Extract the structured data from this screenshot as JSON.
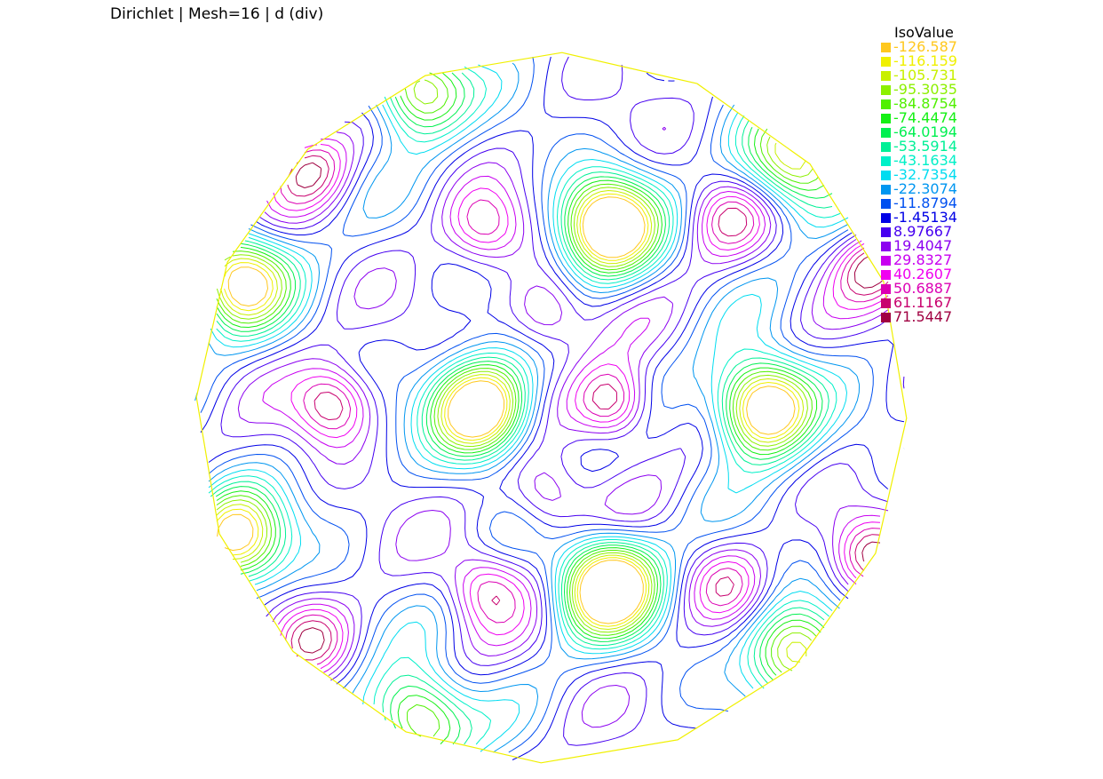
{
  "title": "Dirichlet | Mesh=16 | d (div)",
  "legend": {
    "title": "IsoValue",
    "entries": [
      {
        "label": "-126.587",
        "color": "#ffc81e"
      },
      {
        "label": "-116.159",
        "color": "#f0f000"
      },
      {
        "label": "-105.731",
        "color": "#c8f000"
      },
      {
        "label": "-95.3035",
        "color": "#8cf000"
      },
      {
        "label": "-84.8754",
        "color": "#50f000"
      },
      {
        "label": "-74.4474",
        "color": "#14f014"
      },
      {
        "label": "-64.0194",
        "color": "#00f050"
      },
      {
        "label": "-53.5914",
        "color": "#00f096"
      },
      {
        "label": "-43.1634",
        "color": "#00f0c8"
      },
      {
        "label": "-32.7354",
        "color": "#00dcf0"
      },
      {
        "label": "-22.3074",
        "color": "#0096f0"
      },
      {
        "label": "-11.8794",
        "color": "#0050f0"
      },
      {
        "label": "-1.45134",
        "color": "#0000e6"
      },
      {
        "label": "8.97667",
        "color": "#4600f0"
      },
      {
        "label": "19.4047",
        "color": "#8c00f0"
      },
      {
        "label": "29.8327",
        "color": "#c800f0"
      },
      {
        "label": "40.2607",
        "color": "#f000f0"
      },
      {
        "label": "50.6887",
        "color": "#dc00b4"
      },
      {
        "label": "61.1167",
        "color": "#c8006e"
      },
      {
        "label": "71.5447",
        "color": "#a00041"
      }
    ]
  },
  "chart_data": {
    "type": "contour",
    "title": "Dirichlet | Mesh=16 | d (div)",
    "legend_title": "IsoValue",
    "levels": [
      -126.587,
      -116.159,
      -105.731,
      -95.3035,
      -84.8754,
      -74.4474,
      -64.0194,
      -53.5914,
      -43.1634,
      -32.7354,
      -22.3074,
      -11.8794,
      -1.45134,
      8.97667,
      19.4047,
      29.8327,
      40.2607,
      50.6887,
      61.1167,
      71.5447
    ],
    "domain": "disk",
    "boundary_sides": 16,
    "boundary_color": "#f0f000",
    "legend_position": "top-right",
    "grid": false
  }
}
